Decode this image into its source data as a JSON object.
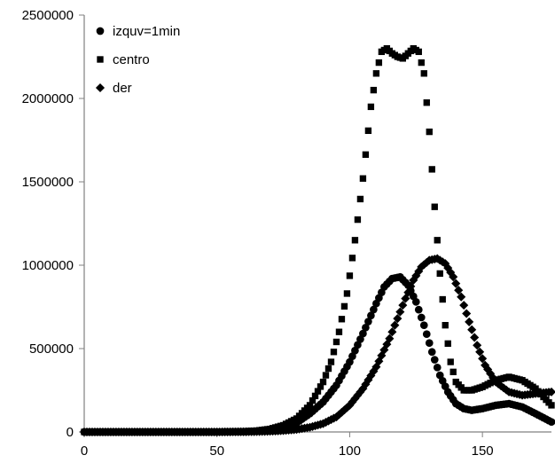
{
  "chart_data": {
    "type": "scatter",
    "title": "",
    "xlabel": "",
    "ylabel": "",
    "xlim": [
      0,
      176
    ],
    "ylim": [
      0,
      2500000
    ],
    "x_ticks": [
      0,
      50,
      100,
      150
    ],
    "x_tick_labels": [
      "0",
      "50",
      "100",
      "150"
    ],
    "y_ticks": [
      0,
      500000,
      1000000,
      1500000,
      2000000,
      2500000
    ],
    "y_tick_labels": [
      "0",
      "500000",
      "1000000",
      "1500000",
      "2000000",
      "2500000"
    ],
    "grid": false,
    "legend": {
      "position": "top-left",
      "entries": [
        "izquv=1min",
        "centro",
        "der"
      ]
    },
    "series": [
      {
        "name": "izquv=1min",
        "marker": "circle",
        "color": "#000000",
        "x": [
          0,
          10,
          20,
          30,
          40,
          50,
          60,
          65,
          70,
          75,
          80,
          85,
          90,
          95,
          100,
          105,
          110,
          113,
          116,
          119,
          122,
          125,
          128,
          131,
          134,
          137,
          140,
          143,
          146,
          150,
          155,
          160,
          165,
          170,
          176
        ],
        "y": [
          0,
          0,
          0,
          0,
          0,
          0,
          2000,
          5000,
          12000,
          25000,
          55000,
          110000,
          180000,
          280000,
          420000,
          590000,
          770000,
          870000,
          920000,
          930000,
          880000,
          780000,
          640000,
          480000,
          340000,
          240000,
          170000,
          140000,
          130000,
          140000,
          160000,
          170000,
          150000,
          110000,
          60000
        ]
      },
      {
        "name": "centro",
        "marker": "square",
        "color": "#000000",
        "x": [
          0,
          10,
          20,
          30,
          40,
          50,
          60,
          65,
          70,
          75,
          80,
          85,
          90,
          93,
          96,
          99,
          102,
          105,
          108,
          110,
          112,
          114,
          116,
          118,
          120,
          122,
          124,
          126,
          128,
          130,
          132,
          134,
          136,
          138,
          140,
          143,
          146,
          150,
          155,
          160,
          165,
          170,
          176
        ],
        "y": [
          0,
          0,
          0,
          0,
          0,
          0,
          3000,
          8000,
          18000,
          40000,
          80000,
          160000,
          300000,
          420000,
          600000,
          830000,
          1150000,
          1520000,
          1950000,
          2150000,
          2280000,
          2300000,
          2270000,
          2250000,
          2240000,
          2270000,
          2300000,
          2280000,
          2150000,
          1800000,
          1350000,
          950000,
          640000,
          420000,
          300000,
          250000,
          250000,
          270000,
          310000,
          330000,
          310000,
          260000,
          160000
        ]
      },
      {
        "name": "der",
        "marker": "diamond",
        "color": "#000000",
        "x": [
          0,
          10,
          20,
          30,
          40,
          50,
          60,
          65,
          70,
          75,
          80,
          85,
          90,
          95,
          100,
          105,
          110,
          115,
          118,
          121,
          124,
          127,
          130,
          133,
          136,
          139,
          142,
          145,
          148,
          151,
          155,
          160,
          165,
          170,
          176
        ],
        "y": [
          0,
          0,
          0,
          0,
          0,
          0,
          1000,
          2000,
          4000,
          8000,
          15000,
          28000,
          50000,
          90000,
          160000,
          260000,
          390000,
          560000,
          680000,
          800000,
          910000,
          990000,
          1030000,
          1040000,
          1010000,
          930000,
          810000,
          660000,
          520000,
          400000,
          300000,
          240000,
          220000,
          230000,
          240000
        ]
      }
    ]
  }
}
